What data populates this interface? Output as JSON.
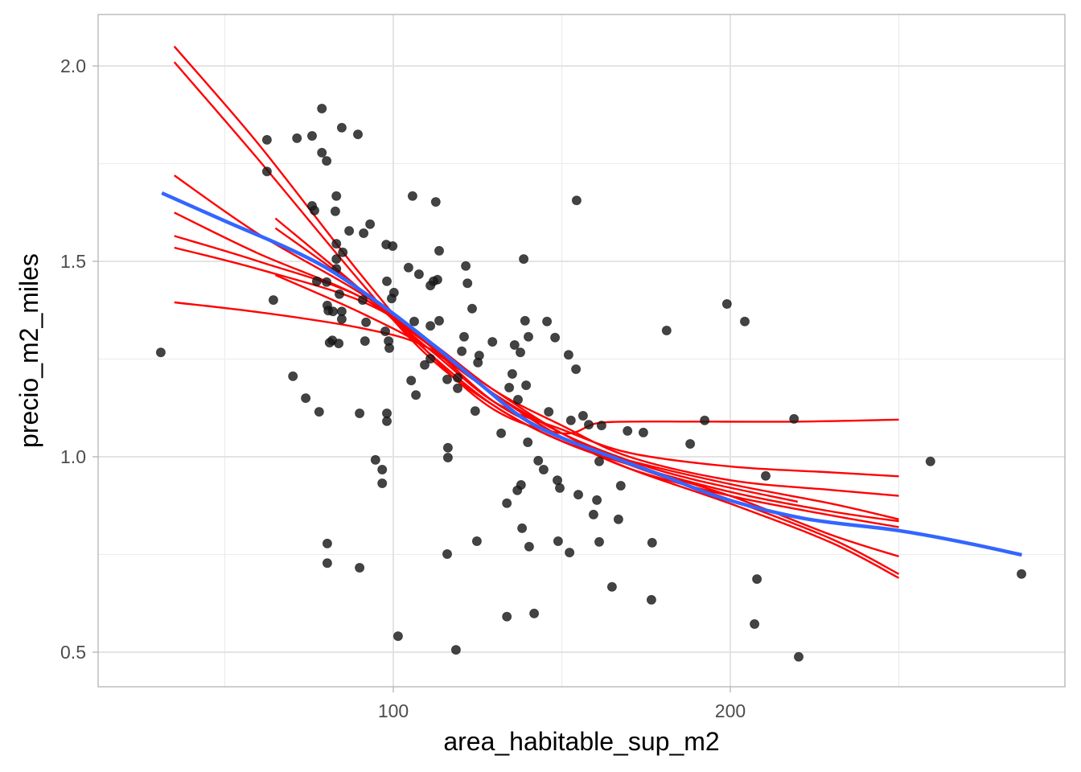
{
  "chart_data": {
    "type": "scatter",
    "title": "",
    "xlabel": "area_habitable_sup_m2",
    "ylabel": "precio_m2_miles",
    "xlim": [
      12.4,
      299.3
    ],
    "ylim": [
      0.4115,
      2.1317
    ],
    "x_ticks": [
      100,
      200
    ],
    "x_tick_labels": [
      "100",
      "200"
    ],
    "x_minor_ticks": [
      50,
      150,
      250
    ],
    "y_ticks": [
      0.5,
      1.0,
      1.5,
      2.0
    ],
    "y_tick_labels": [
      "0.5",
      "1.0",
      "1.5",
      "2.0"
    ],
    "y_minor_ticks": [
      0.75,
      1.25,
      1.75
    ],
    "grid": true,
    "legend": "none",
    "colors": {
      "points": "#1a1a1a",
      "smooth": "#3366ff",
      "resamples": "#ff0000",
      "grid": "#ebebeb",
      "panel_border": "#b3b3b3"
    },
    "points": [
      [
        31.0,
        1.267
      ],
      [
        62.5,
        1.811
      ],
      [
        62.5,
        1.73
      ],
      [
        64.4,
        1.401
      ],
      [
        71.4,
        1.815
      ],
      [
        75.9,
        1.821
      ],
      [
        78.8,
        1.891
      ],
      [
        78.8,
        1.778
      ],
      [
        80.2,
        1.757
      ],
      [
        84.7,
        1.842
      ],
      [
        89.5,
        1.825
      ],
      [
        83.1,
        1.667
      ],
      [
        75.9,
        1.642
      ],
      [
        76.6,
        1.63
      ],
      [
        82.8,
        1.628
      ],
      [
        93.1,
        1.595
      ],
      [
        86.9,
        1.578
      ],
      [
        91.2,
        1.572
      ],
      [
        97.9,
        1.543
      ],
      [
        99.8,
        1.539
      ],
      [
        83.1,
        1.545
      ],
      [
        85.0,
        1.523
      ],
      [
        83.1,
        1.506
      ],
      [
        83.1,
        1.481
      ],
      [
        77.3,
        1.449
      ],
      [
        80.2,
        1.447
      ],
      [
        98.1,
        1.449
      ],
      [
        100.2,
        1.42
      ],
      [
        84.0,
        1.416
      ],
      [
        90.9,
        1.401
      ],
      [
        80.4,
        1.387
      ],
      [
        80.7,
        1.374
      ],
      [
        82.1,
        1.372
      ],
      [
        84.7,
        1.372
      ],
      [
        84.7,
        1.352
      ],
      [
        91.9,
        1.344
      ],
      [
        97.6,
        1.321
      ],
      [
        91.6,
        1.296
      ],
      [
        98.6,
        1.296
      ],
      [
        98.8,
        1.278
      ],
      [
        81.9,
        1.298
      ],
      [
        81.1,
        1.292
      ],
      [
        83.8,
        1.29
      ],
      [
        70.2,
        1.206
      ],
      [
        74.0,
        1.15
      ],
      [
        78.0,
        1.115
      ],
      [
        90.0,
        1.111
      ],
      [
        98.1,
        1.111
      ],
      [
        98.1,
        1.091
      ],
      [
        94.7,
        0.992
      ],
      [
        96.7,
        0.967
      ],
      [
        96.7,
        0.932
      ],
      [
        80.4,
        0.778
      ],
      [
        80.4,
        0.728
      ],
      [
        90.0,
        0.716
      ],
      [
        101.4,
        0.541
      ],
      [
        118.6,
        0.506
      ],
      [
        105.7,
        1.667
      ],
      [
        112.6,
        1.652
      ],
      [
        154.4,
        1.656
      ],
      [
        113.6,
        1.527
      ],
      [
        138.7,
        1.506
      ],
      [
        121.5,
        1.488
      ],
      [
        104.5,
        1.484
      ],
      [
        107.6,
        1.467
      ],
      [
        113.1,
        1.453
      ],
      [
        111.9,
        1.449
      ],
      [
        111.0,
        1.438
      ],
      [
        122.0,
        1.444
      ],
      [
        99.5,
        1.405
      ],
      [
        123.4,
        1.379
      ],
      [
        113.6,
        1.348
      ],
      [
        106.2,
        1.346
      ],
      [
        111.0,
        1.335
      ],
      [
        139.1,
        1.348
      ],
      [
        145.6,
        1.346
      ],
      [
        121.0,
        1.307
      ],
      [
        140.1,
        1.307
      ],
      [
        148.0,
        1.305
      ],
      [
        129.4,
        1.294
      ],
      [
        136.0,
        1.286
      ],
      [
        137.7,
        1.267
      ],
      [
        152.0,
        1.261
      ],
      [
        125.5,
        1.259
      ],
      [
        120.3,
        1.27
      ],
      [
        125.1,
        1.241
      ],
      [
        154.2,
        1.224
      ],
      [
        135.3,
        1.212
      ],
      [
        139.4,
        1.183
      ],
      [
        134.4,
        1.177
      ],
      [
        119.1,
        1.175
      ],
      [
        111.0,
        1.251
      ],
      [
        109.3,
        1.235
      ],
      [
        105.3,
        1.195
      ],
      [
        116.0,
        1.198
      ],
      [
        119.1,
        1.202
      ],
      [
        106.7,
        1.158
      ],
      [
        137.0,
        1.146
      ],
      [
        124.3,
        1.117
      ],
      [
        146.1,
        1.115
      ],
      [
        152.7,
        1.093
      ],
      [
        156.3,
        1.105
      ],
      [
        158.0,
        1.082
      ],
      [
        161.8,
        1.08
      ],
      [
        169.5,
        1.066
      ],
      [
        174.2,
        1.062
      ],
      [
        132.0,
        1.06
      ],
      [
        139.9,
        1.037
      ],
      [
        188.1,
        1.033
      ],
      [
        192.4,
        1.093
      ],
      [
        218.9,
        1.097
      ],
      [
        181.1,
        1.323
      ],
      [
        199.0,
        1.391
      ],
      [
        204.3,
        1.346
      ],
      [
        116.2,
        1.023
      ],
      [
        116.2,
        0.998
      ],
      [
        143.0,
        0.99
      ],
      [
        161.1,
        0.988
      ],
      [
        144.6,
        0.967
      ],
      [
        148.7,
        0.94
      ],
      [
        149.4,
        0.92
      ],
      [
        137.9,
        0.928
      ],
      [
        136.8,
        0.914
      ],
      [
        167.5,
        0.926
      ],
      [
        154.9,
        0.903
      ],
      [
        160.4,
        0.889
      ],
      [
        133.7,
        0.881
      ],
      [
        159.4,
        0.852
      ],
      [
        166.8,
        0.84
      ],
      [
        138.2,
        0.817
      ],
      [
        124.8,
        0.784
      ],
      [
        148.9,
        0.784
      ],
      [
        161.1,
        0.782
      ],
      [
        176.8,
        0.78
      ],
      [
        140.3,
        0.77
      ],
      [
        152.3,
        0.755
      ],
      [
        116.0,
        0.751
      ],
      [
        164.9,
        0.667
      ],
      [
        176.6,
        0.634
      ],
      [
        133.7,
        0.591
      ],
      [
        141.8,
        0.599
      ],
      [
        210.5,
        0.951
      ],
      [
        259.4,
        0.988
      ],
      [
        207.9,
        0.687
      ],
      [
        207.2,
        0.572
      ],
      [
        220.3,
        0.488
      ],
      [
        286.4,
        0.7
      ]
    ],
    "smooth_line": [
      [
        31.3,
        1.675
      ],
      [
        50.1,
        1.603
      ],
      [
        66.8,
        1.541
      ],
      [
        78.8,
        1.49
      ],
      [
        88.3,
        1.438
      ],
      [
        100,
        1.366
      ],
      [
        112.2,
        1.284
      ],
      [
        126.5,
        1.181
      ],
      [
        138.4,
        1.099
      ],
      [
        150.4,
        1.047
      ],
      [
        164.7,
        1.0
      ],
      [
        179.0,
        0.955
      ],
      [
        198.1,
        0.893
      ],
      [
        222,
        0.842
      ],
      [
        250,
        0.811
      ],
      [
        269.8,
        0.78
      ],
      [
        286.5,
        0.749
      ]
    ],
    "resample_lines": [
      [
        [
          35,
          2.05
        ],
        [
          60,
          1.8
        ],
        [
          90,
          1.47
        ],
        [
          110,
          1.27
        ],
        [
          130,
          1.12
        ],
        [
          150,
          1.06
        ],
        [
          160,
          1.085
        ],
        [
          170,
          1.09
        ],
        [
          190,
          1.09
        ],
        [
          220,
          1.09
        ],
        [
          250,
          1.095
        ]
      ],
      [
        [
          35,
          2.01
        ],
        [
          60,
          1.76
        ],
        [
          90,
          1.45
        ],
        [
          110,
          1.26
        ],
        [
          130,
          1.13
        ],
        [
          150,
          1.04
        ],
        [
          170,
          0.99
        ],
        [
          200,
          0.93
        ],
        [
          230,
          0.88
        ],
        [
          250,
          0.84
        ]
      ],
      [
        [
          35,
          1.72
        ],
        [
          60,
          1.57
        ],
        [
          90,
          1.42
        ],
        [
          110,
          1.29
        ],
        [
          130,
          1.16
        ],
        [
          150,
          1.05
        ],
        [
          170,
          0.98
        ],
        [
          200,
          0.9
        ],
        [
          230,
          0.8
        ],
        [
          250,
          0.745
        ]
      ],
      [
        [
          35,
          1.625
        ],
        [
          60,
          1.52
        ],
        [
          90,
          1.41
        ],
        [
          110,
          1.29
        ],
        [
          130,
          1.17
        ],
        [
          150,
          1.06
        ],
        [
          170,
          0.98
        ],
        [
          200,
          0.89
        ],
        [
          230,
          0.79
        ],
        [
          250,
          0.7
        ]
      ],
      [
        [
          35,
          1.565
        ],
        [
          60,
          1.5
        ],
        [
          90,
          1.41
        ],
        [
          110,
          1.28
        ],
        [
          130,
          1.14
        ],
        [
          150,
          1.07
        ],
        [
          170,
          1.01
        ],
        [
          200,
          0.975
        ],
        [
          230,
          0.96
        ],
        [
          250,
          0.95
        ]
      ],
      [
        [
          35,
          1.535
        ],
        [
          60,
          1.48
        ],
        [
          90,
          1.4
        ],
        [
          110,
          1.3
        ],
        [
          130,
          1.17
        ],
        [
          150,
          1.08
        ],
        [
          170,
          1.0
        ],
        [
          200,
          0.94
        ],
        [
          230,
          0.915
        ],
        [
          250,
          0.9
        ]
      ],
      [
        [
          35,
          1.395
        ],
        [
          60,
          1.37
        ],
        [
          90,
          1.33
        ],
        [
          110,
          1.28
        ],
        [
          130,
          1.16
        ],
        [
          150,
          1.05
        ],
        [
          170,
          0.97
        ],
        [
          200,
          0.88
        ],
        [
          230,
          0.78
        ],
        [
          250,
          0.69
        ]
      ],
      [
        [
          65,
          1.61
        ],
        [
          90,
          1.43
        ],
        [
          110,
          1.27
        ],
        [
          130,
          1.13
        ],
        [
          150,
          1.04
        ],
        [
          170,
          0.98
        ],
        [
          200,
          0.91
        ],
        [
          230,
          0.86
        ],
        [
          250,
          0.835
        ]
      ],
      [
        [
          65,
          1.585
        ],
        [
          90,
          1.43
        ],
        [
          110,
          1.29
        ],
        [
          130,
          1.14
        ],
        [
          150,
          1.05
        ],
        [
          170,
          0.97
        ],
        [
          200,
          0.9
        ],
        [
          230,
          0.85
        ],
        [
          250,
          0.82
        ]
      ],
      [
        [
          65,
          1.465
        ],
        [
          90,
          1.37
        ],
        [
          110,
          1.28
        ],
        [
          130,
          1.16
        ],
        [
          150,
          1.06
        ],
        [
          170,
          0.99
        ],
        [
          190,
          0.94
        ],
        [
          220,
          0.885
        ]
      ]
    ]
  }
}
